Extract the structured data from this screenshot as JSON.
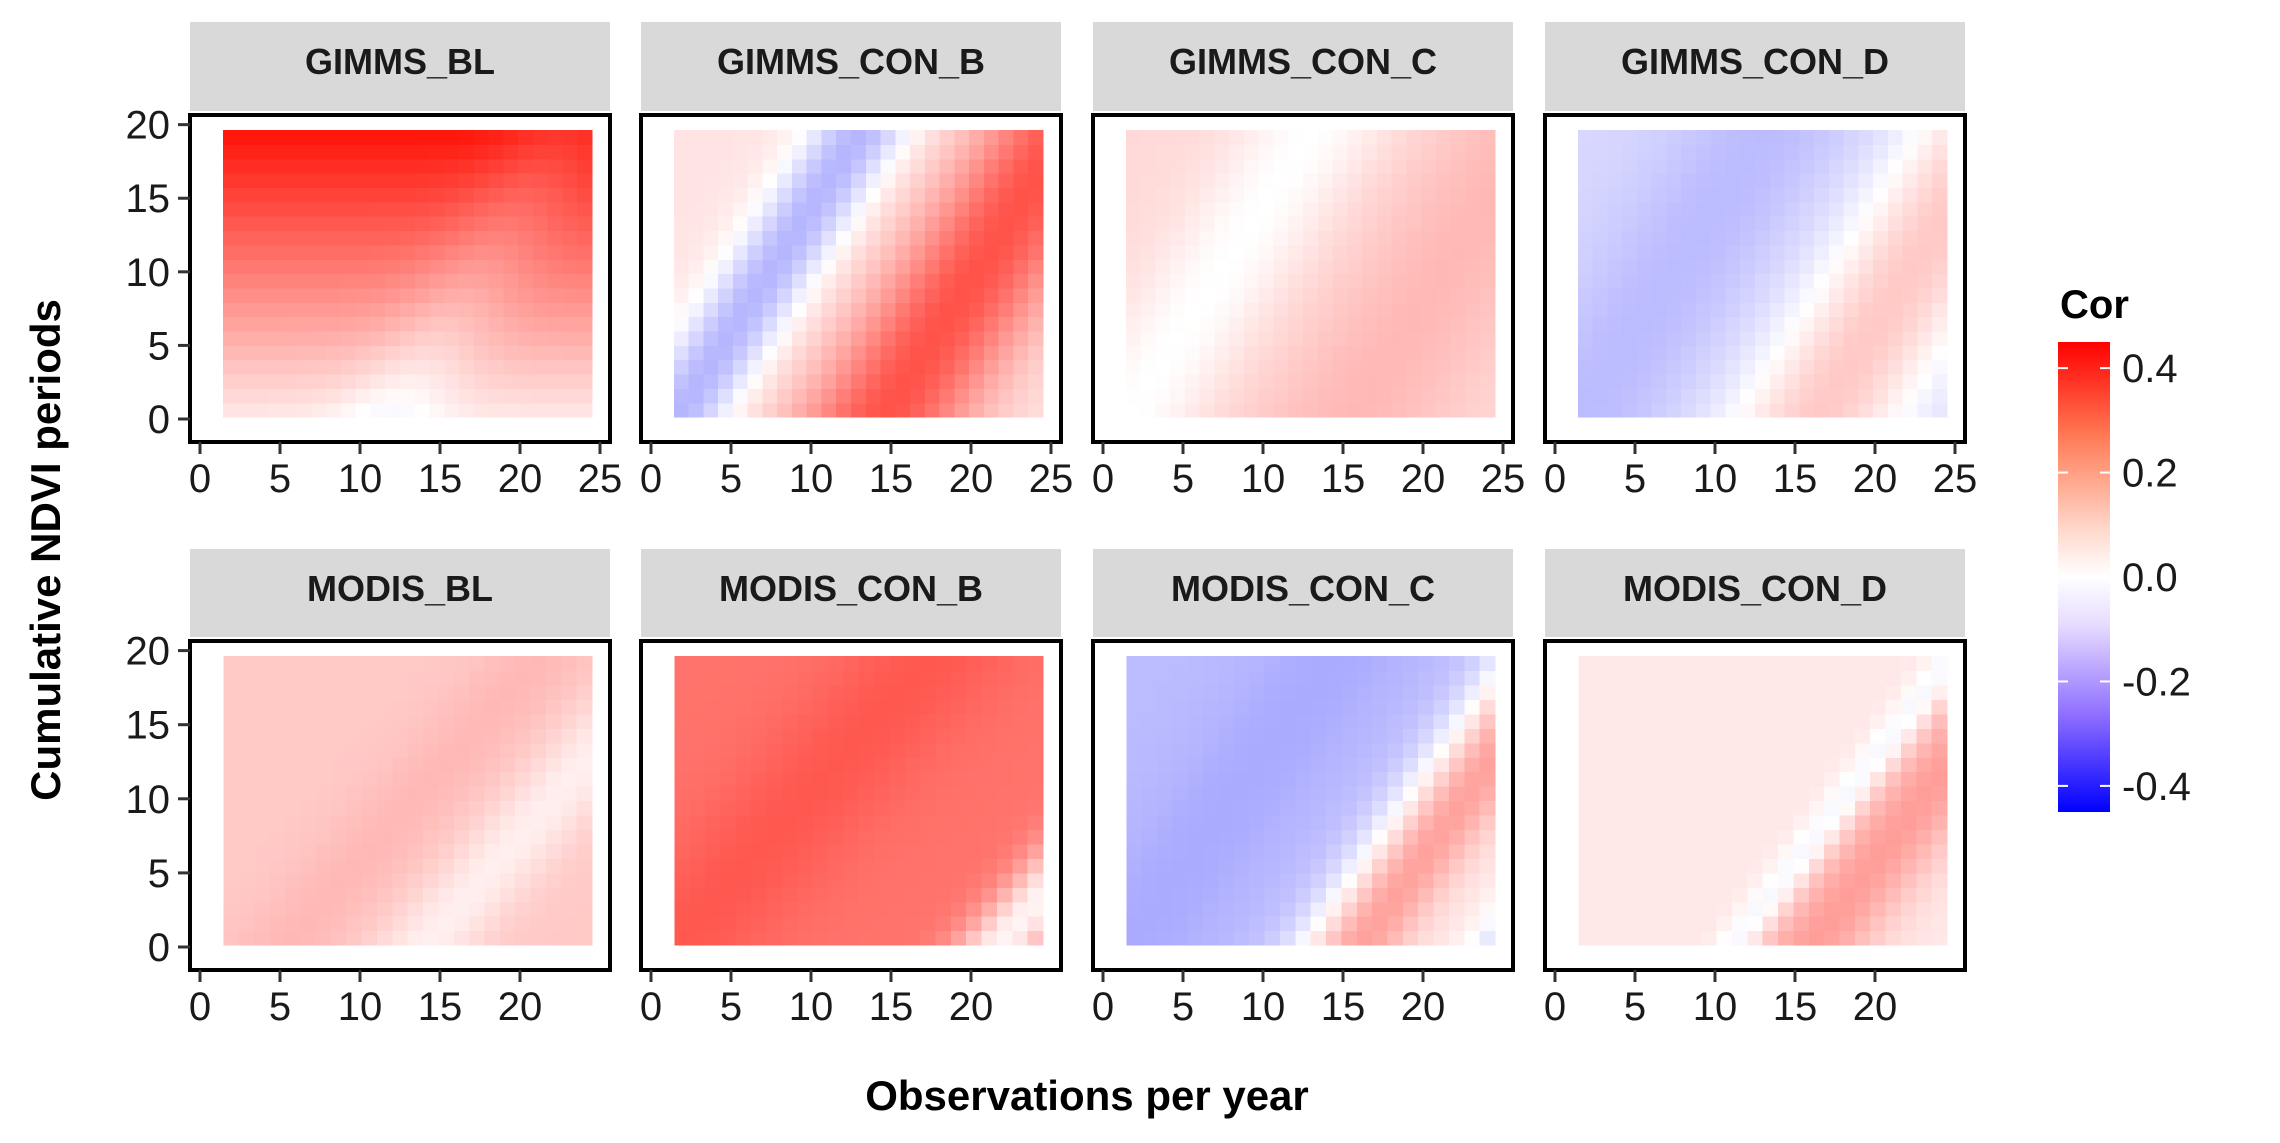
{
  "chart_data": {
    "type": "heatmap",
    "layout": "2 rows x 4 facets",
    "xlabel": "Observations per year",
    "ylabel": "Cumulative NDVI periods",
    "legend": {
      "title": "Cor",
      "position": "right",
      "range": [
        -0.45,
        0.45
      ],
      "ticks": [
        0.4,
        0.2,
        0.0,
        -0.2,
        -0.4
      ],
      "tick_labels": [
        "0.4",
        "0.2",
        "0.0",
        "-0.2",
        "-0.4"
      ],
      "low_color": "#0000ff",
      "mid_color": "#ffffff",
      "high_color": "#ff0000"
    },
    "y_axis": {
      "range": [
        -1,
        20
      ],
      "ticks": [
        0,
        5,
        10,
        15,
        20
      ],
      "tick_labels": [
        "0",
        "5",
        "10",
        "15",
        "20"
      ]
    },
    "rows": [
      {
        "x_range": [
          1,
          25
        ],
        "x_ticks": [
          0,
          5,
          10,
          15,
          20,
          25
        ],
        "x_tick_labels": [
          "0",
          "5",
          "10",
          "15",
          "20",
          "25"
        ],
        "panels": [
          {
            "title": "GIMMS_BL",
            "approx_cor": {
              "base": 0.05,
              "band_slope": 1.7,
              "band": [
                {
                  "offset": 12,
                  "width": 4,
                  "amp": -0.06
                }
              ],
              "gx": 0.0,
              "gy": 0.02
            }
          },
          {
            "title": "GIMMS_CON_B",
            "approx_cor": {
              "base": 0.05,
              "band_slope": 1.6,
              "band": [
                {
                  "offset": 1,
                  "width": 3.5,
                  "amp": -0.18
                },
                {
                  "offset": 15,
                  "width": 6,
                  "amp": 0.27
                }
              ],
              "gx": 0.0,
              "gy": 0.0
            }
          },
          {
            "title": "GIMMS_CON_C",
            "approx_cor": {
              "base": 0.07,
              "band_slope": 1.6,
              "band": [
                {
                  "offset": 1,
                  "width": 5,
                  "amp": -0.07
                },
                {
                  "offset": 16,
                  "width": 7,
                  "amp": 0.06
                }
              ],
              "gx": 0.0,
              "gy": 0.0
            }
          },
          {
            "title": "GIMMS_CON_D",
            "approx_cor": {
              "base": -0.07,
              "band_slope": 1.6,
              "band": [
                {
                  "offset": 1,
                  "width": 6,
                  "amp": -0.05
                },
                {
                  "offset": 17,
                  "width": 6,
                  "amp": 0.17
                }
              ],
              "gx": 0.0,
              "gy": 0.0
            }
          }
        ]
      },
      {
        "x_range": [
          1,
          24
        ],
        "x_ticks": [
          0,
          5,
          10,
          15,
          20
        ],
        "x_tick_labels": [
          "0",
          "5",
          "10",
          "15",
          "20"
        ],
        "panels": [
          {
            "title": "MODIS_BL",
            "approx_cor": {
              "base": 0.1,
              "band_slope": 1.2,
              "band": [
                {
                  "offset": 14,
                  "width": 3.5,
                  "amp": -0.07
                },
                {
                  "offset": 5,
                  "width": 4,
                  "amp": 0.03
                }
              ],
              "gx": 0.0,
              "gy": 0.0
            }
          },
          {
            "title": "MODIS_CON_B",
            "approx_cor": {
              "base": 0.26,
              "band_slope": 1.2,
              "band": [
                {
                  "offset": 1,
                  "width": 6,
                  "amp": 0.05
                },
                {
                  "offset": 22,
                  "width": 3,
                  "amp": -0.24
                }
              ],
              "gx": 0.0,
              "gy": 0.0
            }
          },
          {
            "title": "MODIS_CON_C",
            "approx_cor": {
              "base": -0.12,
              "band_slope": 1.5,
              "band": [
                {
                  "offset": 1,
                  "width": 5,
                  "amp": -0.03
                },
                {
                  "offset": 16,
                  "width": 4,
                  "amp": 0.29
                },
                {
                  "offset": 22,
                  "width": 3,
                  "amp": 0.12
                }
              ],
              "gx": 0.0,
              "gy": 0.0
            }
          },
          {
            "title": "MODIS_CON_D",
            "approx_cor": {
              "base": 0.04,
              "band_slope": 1.4,
              "band": [
                {
                  "offset": 11,
                  "width": 1.5,
                  "amp": -0.08
                },
                {
                  "offset": 16,
                  "width": 4,
                  "amp": 0.14
                }
              ],
              "gx": 0.0,
              "gy": 0.0
            }
          }
        ]
      }
    ]
  }
}
